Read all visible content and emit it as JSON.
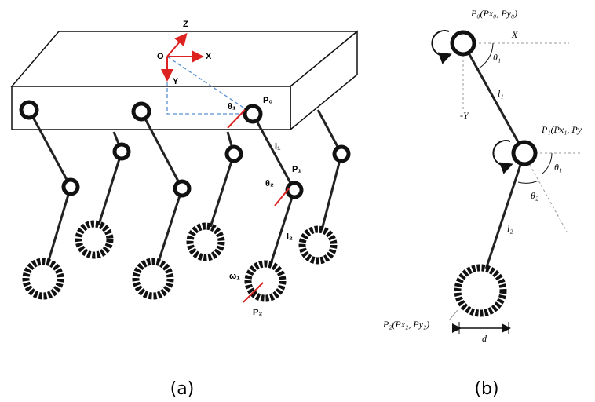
{
  "panel_a": {
    "axis_z": "Z",
    "origin": "O",
    "axis_x": "X",
    "axis_y": "Y",
    "theta1": "θ₁",
    "p0": "P₀",
    "l1": "l₁",
    "theta2": "θ₂",
    "p1": "P₁",
    "l2": "l₂",
    "omega1": "ω₁",
    "p2": "P₂",
    "caption": "(a)"
  },
  "panel_b": {
    "p0": "P₀(Px₀, Py₀)",
    "axis_x": "X",
    "theta1_top": "θ₁",
    "axis_neg_y": "-Y",
    "l1": "l₁",
    "p1": "P₁(Px₁, Py",
    "theta1": "θ₁",
    "theta2": "θ₂",
    "l2": "l₂",
    "p2": "P₂(Px₂, Py₂)",
    "d": "d",
    "caption": "(b)"
  }
}
